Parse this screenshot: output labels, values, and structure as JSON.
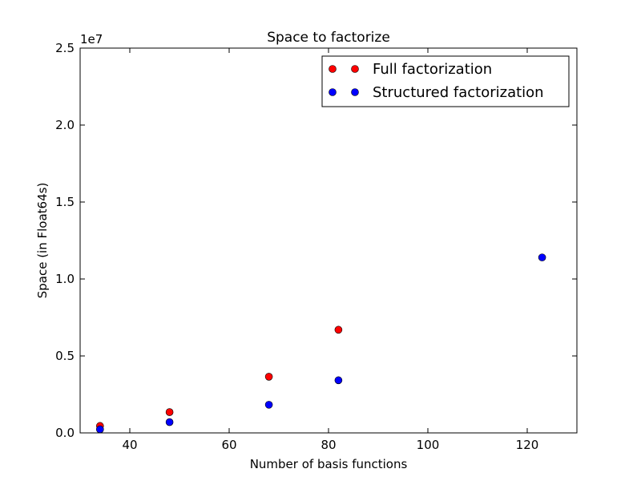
{
  "chart_data": {
    "type": "scatter",
    "title": "Space to factorize",
    "xlabel": "Number of basis functions",
    "ylabel": "Space (in Float64s)",
    "xlim": [
      30,
      130
    ],
    "ylim": [
      0,
      25000000
    ],
    "x_ticks": [
      40,
      60,
      80,
      100,
      120
    ],
    "x_tick_labels": [
      "40",
      "60",
      "80",
      "100",
      "120"
    ],
    "y_ticks": [
      0,
      5000000,
      10000000,
      15000000,
      20000000,
      25000000
    ],
    "y_tick_labels": [
      "0.0",
      "0.5",
      "1.0",
      "1.5",
      "2.0",
      "2.5"
    ],
    "y_offset_text": "1e7",
    "grid": false,
    "legend_position": "top-right",
    "series": [
      {
        "name": "Full factorization",
        "color": "#ff0000",
        "x": [
          34,
          48,
          68,
          82
        ],
        "y": [
          450000,
          1350000,
          3650000,
          6700000
        ]
      },
      {
        "name": "Structured factorization",
        "color": "#0000ff",
        "x": [
          34,
          48,
          68,
          82,
          123
        ],
        "y": [
          230000,
          700000,
          1830000,
          3420000,
          11400000
        ]
      }
    ]
  }
}
